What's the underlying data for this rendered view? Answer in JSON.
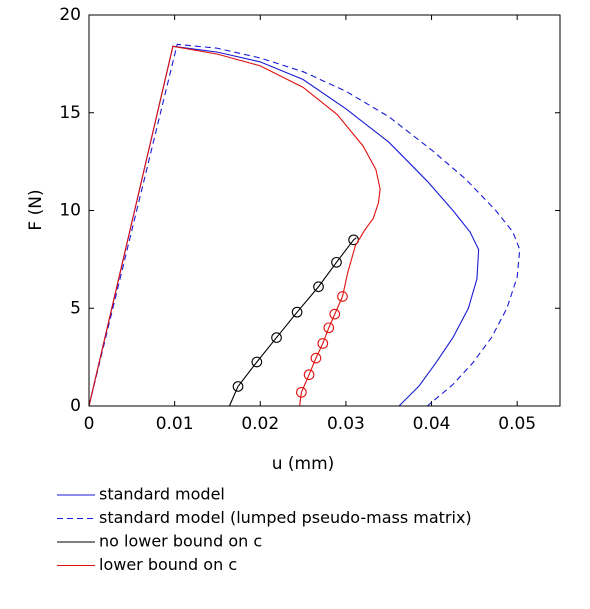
{
  "chart_data": {
    "type": "line",
    "xlabel": "u (mm)",
    "ylabel": "F (N)",
    "xlim": [
      0,
      0.055
    ],
    "ylim": [
      0,
      20
    ],
    "xticks": [
      0,
      0.01,
      0.02,
      0.03,
      0.04,
      0.05
    ],
    "yticks": [
      0,
      5,
      10,
      15,
      20
    ],
    "legend": "below",
    "series": [
      {
        "name": "standard model",
        "color": "#1a1ad6",
        "dashed": false,
        "x": [
          0,
          0.0098,
          0.015,
          0.02,
          0.025,
          0.03,
          0.035,
          0.0395,
          0.0425,
          0.0445,
          0.0455,
          0.0453,
          0.0443,
          0.0425,
          0.0405,
          0.0385,
          0.0362
        ],
        "values": [
          0,
          18.4,
          18.1,
          17.6,
          16.7,
          15.2,
          13.5,
          11.5,
          10.0,
          8.9,
          8.0,
          6.5,
          5.0,
          3.5,
          2.2,
          1.0,
          0
        ]
      },
      {
        "name": "standard model (lumped pseudo-mass matrix)",
        "color": "#1a1ad6",
        "dashed": true,
        "x": [
          0,
          0.0103,
          0.015,
          0.02,
          0.025,
          0.03,
          0.035,
          0.04,
          0.044,
          0.0475,
          0.0495,
          0.0503,
          0.05,
          0.0488,
          0.047,
          0.0448,
          0.0425,
          0.0395
        ],
        "values": [
          0,
          18.5,
          18.3,
          17.8,
          17.1,
          16.1,
          14.8,
          13.1,
          11.6,
          10.0,
          8.9,
          8.0,
          6.6,
          5.0,
          3.5,
          2.2,
          1.1,
          0
        ]
      },
      {
        "name": "no lower bound on c",
        "color": "#000000",
        "dashed": false,
        "x": [
          0.0164,
          0.0174,
          0.0196,
          0.0219,
          0.0243,
          0.0268,
          0.0289,
          0.0309,
          0.0312
        ],
        "values": [
          0,
          1.0,
          2.25,
          3.5,
          4.8,
          6.1,
          7.35,
          8.5,
          8.6
        ],
        "markers": {
          "x": [
            0.0174,
            0.0196,
            0.0219,
            0.0243,
            0.0268,
            0.0289,
            0.0309
          ],
          "values": [
            1.0,
            2.25,
            3.5,
            4.8,
            6.1,
            7.35,
            8.5
          ]
        }
      },
      {
        "name": "lower bound on c",
        "color": "#e01010",
        "dashed": false,
        "x": [
          0,
          0.0098,
          0.015,
          0.02,
          0.025,
          0.029,
          0.032,
          0.0335,
          0.034,
          0.0338,
          0.0332,
          0.0322,
          0.0311,
          0.0302,
          0.0296,
          0.0287,
          0.028,
          0.0273,
          0.0265,
          0.0257,
          0.0248,
          0.0246
        ],
        "values": [
          0,
          18.4,
          18.0,
          17.4,
          16.3,
          14.9,
          13.3,
          12.1,
          11.1,
          10.4,
          9.6,
          9.0,
          8.2,
          6.8,
          5.6,
          4.7,
          4.0,
          3.2,
          2.45,
          1.6,
          0.7,
          0
        ],
        "markers": {
          "x": [
            0.0296,
            0.0287,
            0.028,
            0.0273,
            0.0265,
            0.0257,
            0.0248
          ],
          "values": [
            5.6,
            4.7,
            4.0,
            3.2,
            2.45,
            1.6,
            0.7
          ]
        }
      }
    ]
  }
}
